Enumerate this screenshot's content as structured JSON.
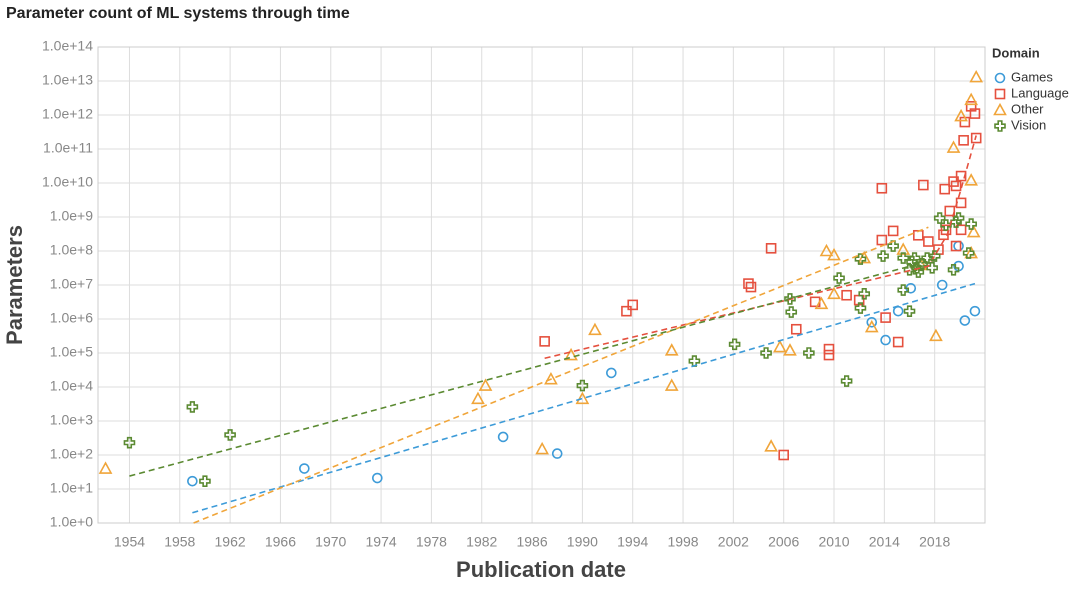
{
  "chart_data": {
    "type": "scatter",
    "title": "Parameter count of ML systems through time",
    "x_label": "Publication date",
    "y_label": "Parameters",
    "legend_title": "Domain",
    "legend": "right",
    "log_y": true,
    "grid": true,
    "xlim": [
      1951.5,
      2022
    ],
    "ylim": [
      1,
      100000000000000.0
    ],
    "xticks": [
      1954,
      1958,
      1962,
      1966,
      1970,
      1974,
      1978,
      1982,
      1986,
      1990,
      1994,
      1998,
      2002,
      2006,
      2010,
      2014,
      2018
    ],
    "yticks": [
      {
        "value": 1,
        "label": "1.0e+0"
      },
      {
        "value": 10,
        "label": "1.0e+1"
      },
      {
        "value": 100,
        "label": "1.0e+2"
      },
      {
        "value": 1000,
        "label": "1.0e+3"
      },
      {
        "value": 10000,
        "label": "1.0e+4"
      },
      {
        "value": 100000,
        "label": "1.0e+5"
      },
      {
        "value": 1000000,
        "label": "1.0e+6"
      },
      {
        "value": 10000000,
        "label": "1.0e+7"
      },
      {
        "value": 100000000,
        "label": "1.0e+8"
      },
      {
        "value": 1000000000,
        "label": "1.0e+9"
      },
      {
        "value": 10000000000,
        "label": "1.0e+10"
      },
      {
        "value": 100000000000,
        "label": "1.0e+11"
      },
      {
        "value": 1000000000000,
        "label": "1.0e+12"
      },
      {
        "value": 10000000000000,
        "label": "1.0e+13"
      },
      {
        "value": 100000000000000,
        "label": "1.0e+14"
      }
    ],
    "series": [
      {
        "name": "Games",
        "color": "#3d9bd8",
        "marker": "circle",
        "x": [
          1959.0,
          1967.9,
          1973.7,
          1983.7,
          1988.0,
          1992.3,
          2013.0,
          2014.1,
          2015.1,
          2016.1,
          2018.6,
          2019.9,
          2020.4,
          2021.2,
          2019.9
        ],
        "values": [
          17,
          40,
          21,
          340,
          110,
          26000,
          800000,
          240000,
          1700000,
          8000000,
          10000000,
          140000000,
          900000,
          1700000,
          36000000
        ],
        "trend_x": [
          1959.0,
          2021.2
        ],
        "trend_y": [
          2,
          11000000
        ]
      },
      {
        "name": "Language",
        "color": "#e5503e",
        "marker": "square",
        "x": [
          1987.0,
          1993.5,
          1994.0,
          2003.2,
          2003.4,
          2005.0,
          2006.0,
          2007.0,
          2008.5,
          2009.6,
          2009.6,
          2011.0,
          2012.0,
          2013.8,
          2013.8,
          2014.1,
          2014.7,
          2015.1,
          2016.7,
          2017.1,
          2017.5,
          2018.3,
          2018.8,
          2018.9,
          2019.2,
          2019.5,
          2019.7,
          2020.1,
          2020.1,
          2020.3,
          2020.4,
          2020.9,
          2021.2,
          2021.3,
          2019.7,
          2020.1,
          2018.7
        ],
        "values": [
          220000,
          1700000,
          2600000,
          11000000,
          8700000,
          120000000,
          100,
          500000,
          3200000,
          130000,
          87000,
          5000000,
          3600000,
          7000000000,
          210000000,
          1100000,
          390000000,
          210000,
          290000000,
          8700000000,
          190000000,
          110000000,
          6600000000,
          420000000,
          1500000000,
          11000000000,
          8200000000,
          2600000000,
          16000000000,
          180000000000,
          620000000000,
          1800000000000,
          1100000000000,
          210000000000,
          140000000,
          420000000,
          300000000
        ],
        "trend_x": [
          1987.0,
          2017.5,
          2019.0,
          2020.0,
          2021.3
        ],
        "trend_y": [
          70000,
          36000000,
          300000000,
          5000000000,
          250000000000
        ]
      },
      {
        "name": "Other",
        "color": "#f0a53a",
        "marker": "triangle",
        "x": [
          1952.1,
          1982.3,
          1981.7,
          1986.8,
          1987.5,
          1989.1,
          1990.0,
          1991.0,
          1997.1,
          1997.1,
          2005.0,
          2005.7,
          2006.5,
          2009.0,
          2009.4,
          2010.0,
          2010.0,
          2012.4,
          2013.0,
          2018.1,
          2019.5,
          2020.1,
          2020.9,
          2021.3,
          2020.9,
          2021.1,
          2020.9,
          2016.9,
          2015.5
        ],
        "values": [
          40,
          11000,
          4500,
          150,
          17000,
          87000,
          4500,
          480000,
          120000,
          11000,
          180,
          150000,
          120000,
          2800000,
          100000000,
          76000000,
          5500000,
          62000000,
          580000,
          320000,
          110000000000,
          930000000000,
          2800000000000,
          13000000000000,
          12000000000,
          360000000,
          87000000,
          39000000,
          110000000
        ],
        "trend_x": [
          1959.1,
          2017.5
        ],
        "trend_y": [
          1,
          500000000
        ]
      },
      {
        "name": "Vision",
        "color": "#5b8a32",
        "marker": "cross",
        "x": [
          1954.0,
          1959.0,
          1960.0,
          1962.0,
          1990.0,
          1998.9,
          2002.1,
          2004.6,
          2006.5,
          2006.6,
          2008.0,
          2010.4,
          2011.0,
          2012.1,
          2012.4,
          2012.1,
          2013.9,
          2014.7,
          2015.5,
          2015.5,
          2016.0,
          2016.0,
          2016.2,
          2016.6,
          2017.0,
          2017.4,
          2017.8,
          2018.0,
          2018.4,
          2018.9,
          2019.5,
          2019.7,
          2019.9,
          2020.7,
          2020.9,
          2016.4,
          2016.7
        ],
        "values": [
          230,
          2600,
          17,
          390,
          11000,
          58000,
          180000,
          100000,
          3900000,
          1600000,
          100000,
          16000000,
          15000,
          2100000,
          5500000,
          58000000,
          71000000,
          140000000,
          62000000,
          7100000,
          1700000,
          28000000,
          48000000,
          32000000,
          42000000,
          62000000,
          32000000,
          71000000,
          930000000,
          580000000,
          28000000,
          710000000,
          930000000,
          87000000,
          620000000,
          62000000,
          24000000
        ],
        "trend_x": [
          1954.0,
          2018.3
        ],
        "trend_y": [
          24,
          60000000
        ]
      }
    ]
  }
}
